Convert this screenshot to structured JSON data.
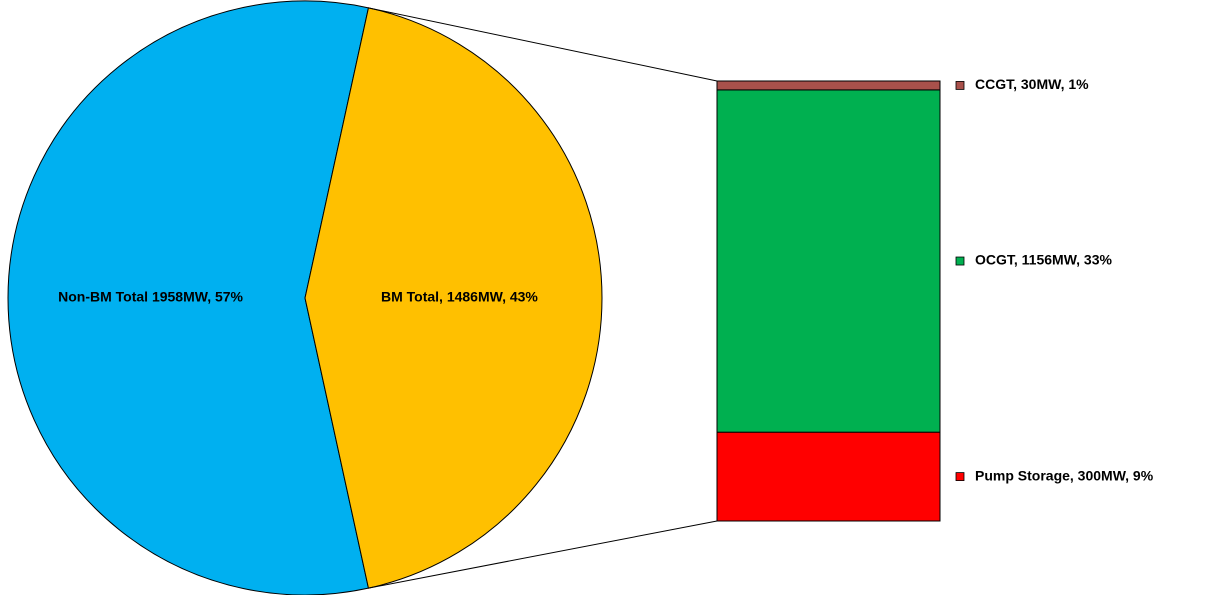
{
  "chart_data": {
    "type": "bar-of-pie",
    "categories": [
      "Non-BM Total",
      "BM Total"
    ],
    "values": [
      1958,
      1486
    ],
    "value_labels": [
      "Non-BM Total  1958MW, 57%",
      "BM Total, 1486MW, 43%"
    ],
    "colors": [
      "#00b0f0",
      "#ffc000"
    ],
    "breakdown": {
      "categories": [
        "CCGT",
        "OCGT",
        "Pump Storage"
      ],
      "values": [
        30,
        1156,
        300
      ],
      "value_labels": [
        "CCGT, 30MW, 1%",
        "OCGT, 1156MW, 33%",
        "Pump Storage, 300MW, 9%"
      ],
      "colors": [
        "#a9514b",
        "#00b050",
        "#ff0000"
      ]
    }
  }
}
